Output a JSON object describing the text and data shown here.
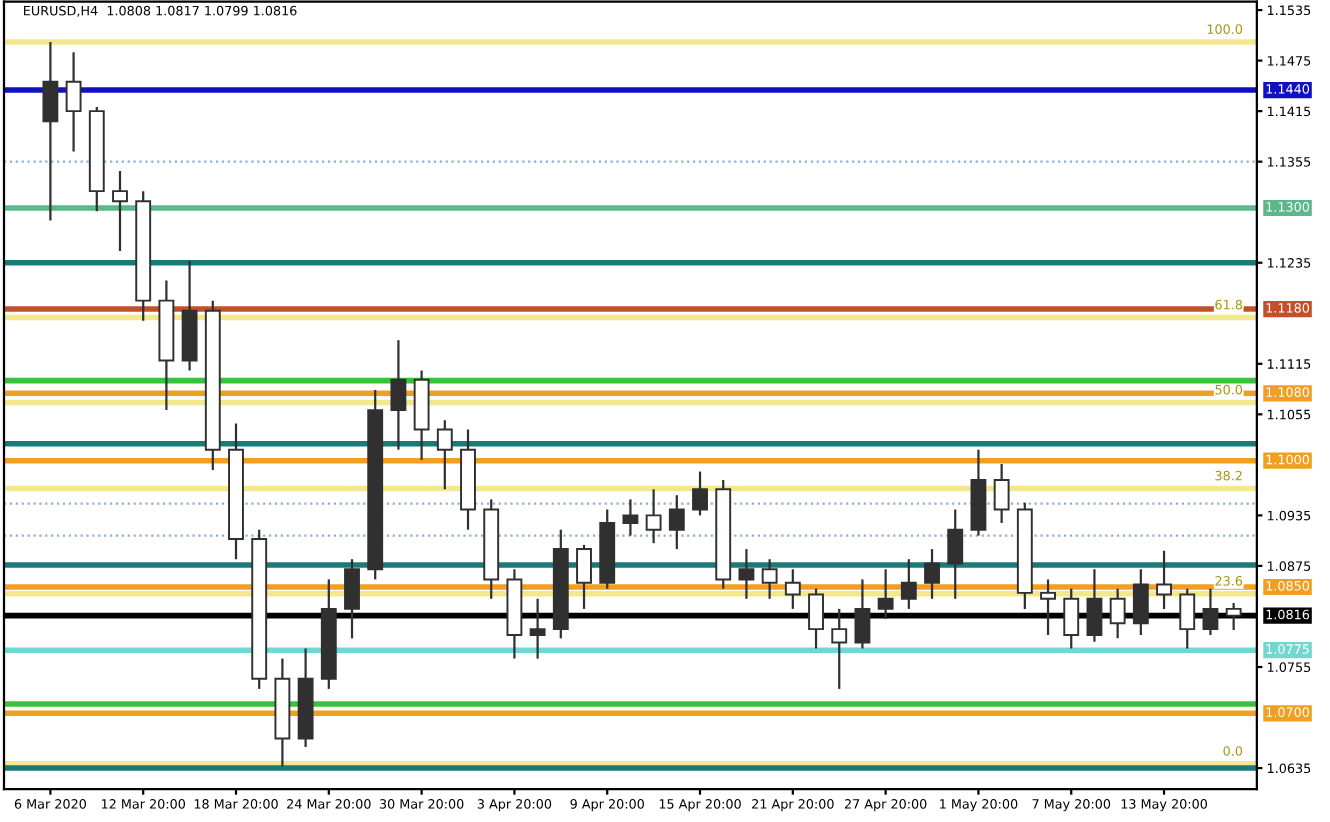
{
  "chart_data": {
    "type": "candlestick",
    "title": "EURUSD,H4  1.0808 1.0817 1.0799 1.0816",
    "categories": [
      "6 Mar 2020",
      null,
      null,
      null,
      "12 Mar 20:00",
      null,
      null,
      null,
      "18 Mar 20:00",
      null,
      null,
      null,
      "24 Mar 20:00",
      null,
      null,
      null,
      "30 Mar 20:00",
      null,
      null,
      null,
      "3 Apr 20:00",
      null,
      null,
      null,
      "9 Apr 20:00",
      null,
      null,
      null,
      "15 Apr 20:00",
      null,
      null,
      null,
      "21 Apr 20:00",
      null,
      null,
      null,
      "27 Apr 20:00",
      null,
      null,
      null,
      "1 May 20:00",
      null,
      null,
      null,
      "7 May 20:00",
      null,
      null,
      null,
      "13 May 20:00",
      null,
      null,
      null
    ],
    "ohlc": [
      [
        1.1403,
        1.1497,
        1.1285,
        1.145
      ],
      [
        1.145,
        1.1485,
        1.1367,
        1.1415
      ],
      [
        1.1415,
        1.142,
        1.1296,
        1.132
      ],
      [
        1.132,
        1.1344,
        1.1249,
        1.1308
      ],
      [
        1.1308,
        1.132,
        1.1166,
        1.119
      ],
      [
        1.119,
        1.1214,
        1.106,
        1.1119
      ],
      [
        1.1119,
        1.1237,
        1.1107,
        1.1178
      ],
      [
        1.1178,
        1.119,
        1.0989,
        1.1013
      ],
      [
        1.1013,
        1.1044,
        1.0883,
        1.0907
      ],
      [
        1.0907,
        1.0918,
        1.0729,
        1.0741
      ],
      [
        1.0741,
        1.0765,
        1.0637,
        1.067
      ],
      [
        1.067,
        1.0777,
        1.066,
        1.0741
      ],
      [
        1.0741,
        1.0859,
        1.0729,
        1.0824
      ],
      [
        1.0824,
        1.0883,
        1.0789,
        1.0871
      ],
      [
        1.0871,
        1.1084,
        1.0859,
        1.106
      ],
      [
        1.106,
        1.1143,
        1.1013,
        1.1096
      ],
      [
        1.1096,
        1.1107,
        1.1001,
        1.1037
      ],
      [
        1.1037,
        1.1048,
        1.0966,
        1.1013
      ],
      [
        1.1013,
        1.1037,
        1.0918,
        1.0942
      ],
      [
        1.0942,
        1.0954,
        1.0836,
        1.0859
      ],
      [
        1.0859,
        1.0871,
        1.0765,
        1.0793
      ],
      [
        1.0793,
        1.0836,
        1.0765,
        1.08
      ],
      [
        1.08,
        1.0918,
        1.0789,
        1.0895
      ],
      [
        1.0895,
        1.09,
        1.0824,
        1.0855
      ],
      [
        1.0855,
        1.0942,
        1.0848,
        1.0926
      ],
      [
        1.0926,
        1.0954,
        1.0911,
        1.0935
      ],
      [
        1.0935,
        1.0966,
        1.0902,
        1.0918
      ],
      [
        1.0918,
        1.0959,
        1.0895,
        1.0942
      ],
      [
        1.0942,
        1.0987,
        1.0935,
        1.0966
      ],
      [
        1.0966,
        1.0977,
        1.0848,
        1.0859
      ],
      [
        1.0859,
        1.0895,
        1.0836,
        1.0871
      ],
      [
        1.0871,
        1.0883,
        1.0836,
        1.0855
      ],
      [
        1.0855,
        1.0871,
        1.0824,
        1.0841
      ],
      [
        1.0841,
        1.0848,
        1.0777,
        1.08
      ],
      [
        1.08,
        1.0824,
        1.0729,
        1.0784
      ],
      [
        1.0784,
        1.0859,
        1.0777,
        1.0824
      ],
      [
        1.0824,
        1.0871,
        1.0812,
        1.0836
      ],
      [
        1.0836,
        1.0883,
        1.0824,
        1.0855
      ],
      [
        1.0855,
        1.0895,
        1.0836,
        1.0878
      ],
      [
        1.0878,
        1.0942,
        1.0836,
        1.0918
      ],
      [
        1.0918,
        1.1013,
        1.0911,
        1.0977
      ],
      [
        1.0977,
        1.0996,
        1.0926,
        1.0942
      ],
      [
        1.0942,
        1.095,
        1.0824,
        1.0843
      ],
      [
        1.0843,
        1.0859,
        1.0793,
        1.0836
      ],
      [
        1.0836,
        1.0848,
        1.0777,
        1.0793
      ],
      [
        1.0793,
        1.0871,
        1.0785,
        1.0836
      ],
      [
        1.0836,
        1.0848,
        1.0789,
        1.0807
      ],
      [
        1.0807,
        1.0871,
        1.0793,
        1.0853
      ],
      [
        1.0853,
        1.0893,
        1.0824,
        1.0841
      ],
      [
        1.0841,
        1.0848,
        1.0777,
        1.08
      ],
      [
        1.08,
        1.0848,
        1.0793,
        1.0824
      ],
      [
        1.0824,
        1.0831,
        1.0799,
        1.0816
      ]
    ],
    "color": "#303030",
    "ylim": [
      1.061,
      1.1545
    ],
    "yticks": [
      1.1535,
      1.1475,
      1.1415,
      1.1355,
      1.1235,
      1.1115,
      1.1055,
      1.0935,
      1.0875,
      1.0755,
      1.0635
    ],
    "grid": false,
    "ref_lines": [
      {
        "axis": "y",
        "value": 1.1497,
        "color": "#f3e98c"
      },
      {
        "axis": "y",
        "value": 1.144,
        "label": "1.1440",
        "color": "#1010c0"
      },
      {
        "axis": "y",
        "value": 1.1355,
        "color": "#8ab0d8",
        "line_style": "dotted"
      },
      {
        "axis": "y",
        "value": 1.13,
        "label": "1.1300",
        "color": "#5cb88a"
      },
      {
        "axis": "y",
        "value": 1.1235,
        "color": "#1a7a78"
      },
      {
        "axis": "y",
        "value": 1.118,
        "label": "1.1180",
        "color": "#c4502a"
      },
      {
        "axis": "y",
        "value": 1.117,
        "color": "#f3e98c"
      },
      {
        "axis": "y",
        "value": 1.1095,
        "color": "#3cc040"
      },
      {
        "axis": "y",
        "value": 1.108,
        "label": "1.1080",
        "color": "#f0a020"
      },
      {
        "axis": "y",
        "value": 1.1069,
        "color": "#f3e98c"
      },
      {
        "axis": "y",
        "value": 1.102,
        "color": "#1a7a78"
      },
      {
        "axis": "y",
        "value": 1.1,
        "label": "1.1000",
        "color": "#f0a020"
      },
      {
        "axis": "y",
        "value": 1.0967,
        "color": "#f3e98c"
      },
      {
        "axis": "y",
        "value": 1.0949,
        "color": "#8ab0d8",
        "line_style": "dotted"
      },
      {
        "axis": "y",
        "value": 1.0911,
        "color": "#8ab0d8",
        "line_style": "dotted"
      },
      {
        "axis": "y",
        "value": 1.0876,
        "color": "#1a7a78"
      },
      {
        "axis": "y",
        "value": 1.085,
        "label": "1.0850",
        "color": "#f0a020"
      },
      {
        "axis": "y",
        "value": 1.0842,
        "color": "#f3e98c"
      },
      {
        "axis": "y",
        "value": 1.0816,
        "label": "1.0816",
        "color": "#000000"
      },
      {
        "axis": "y",
        "value": 1.0775,
        "label": "1.0775",
        "color": "#70d8d0"
      },
      {
        "axis": "y",
        "value": 1.0711,
        "color": "#3cc040"
      },
      {
        "axis": "y",
        "value": 1.07,
        "label": "1.0700",
        "color": "#f0a020"
      },
      {
        "axis": "y",
        "value": 1.064,
        "color": "#f3e98c"
      },
      {
        "axis": "y",
        "value": 1.0635,
        "color": "#1a7a78"
      }
    ],
    "annotations": [
      {
        "text": "100.0",
        "y": 1.1497
      },
      {
        "text": "61.8",
        "y": 1.117
      },
      {
        "text": "50.0",
        "y": 1.1069
      },
      {
        "text": "38.2",
        "y": 1.0967
      },
      {
        "text": "23.6",
        "y": 1.0842
      },
      {
        "text": "0.0",
        "y": 1.064
      }
    ]
  }
}
